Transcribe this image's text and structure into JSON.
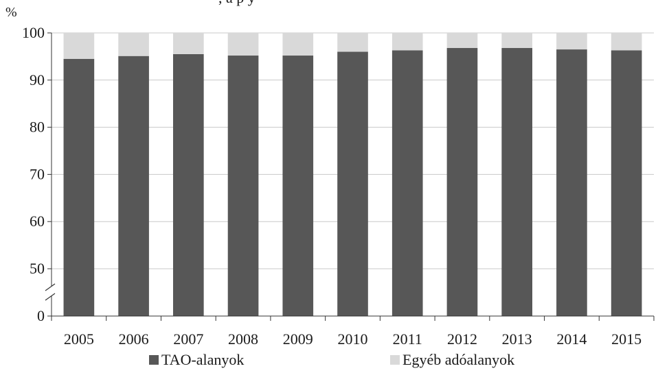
{
  "title_fragment": ", a p          y",
  "chart_data": {
    "type": "bar",
    "stacked": true,
    "unit": "%",
    "categories": [
      "2005",
      "2006",
      "2007",
      "2008",
      "2009",
      "2010",
      "2011",
      "2012",
      "2013",
      "2014",
      "2015"
    ],
    "series": [
      {
        "name": "TAO-alanyok",
        "color": "#575757",
        "values": [
          94.5,
          95.1,
          95.5,
          95.2,
          95.2,
          96.0,
          96.3,
          96.8,
          96.8,
          96.5,
          96.3
        ]
      },
      {
        "name": "Egyéb adóalanyok",
        "color": "#d9d9d9",
        "values": [
          5.5,
          4.9,
          4.5,
          4.8,
          4.8,
          4.0,
          3.7,
          3.2,
          3.2,
          3.5,
          3.7
        ]
      }
    ],
    "yticks": [
      0,
      50,
      60,
      70,
      80,
      90,
      100
    ],
    "ylim": [
      40,
      100
    ],
    "axis_break": true,
    "grid": true,
    "legend_position": "bottom"
  }
}
